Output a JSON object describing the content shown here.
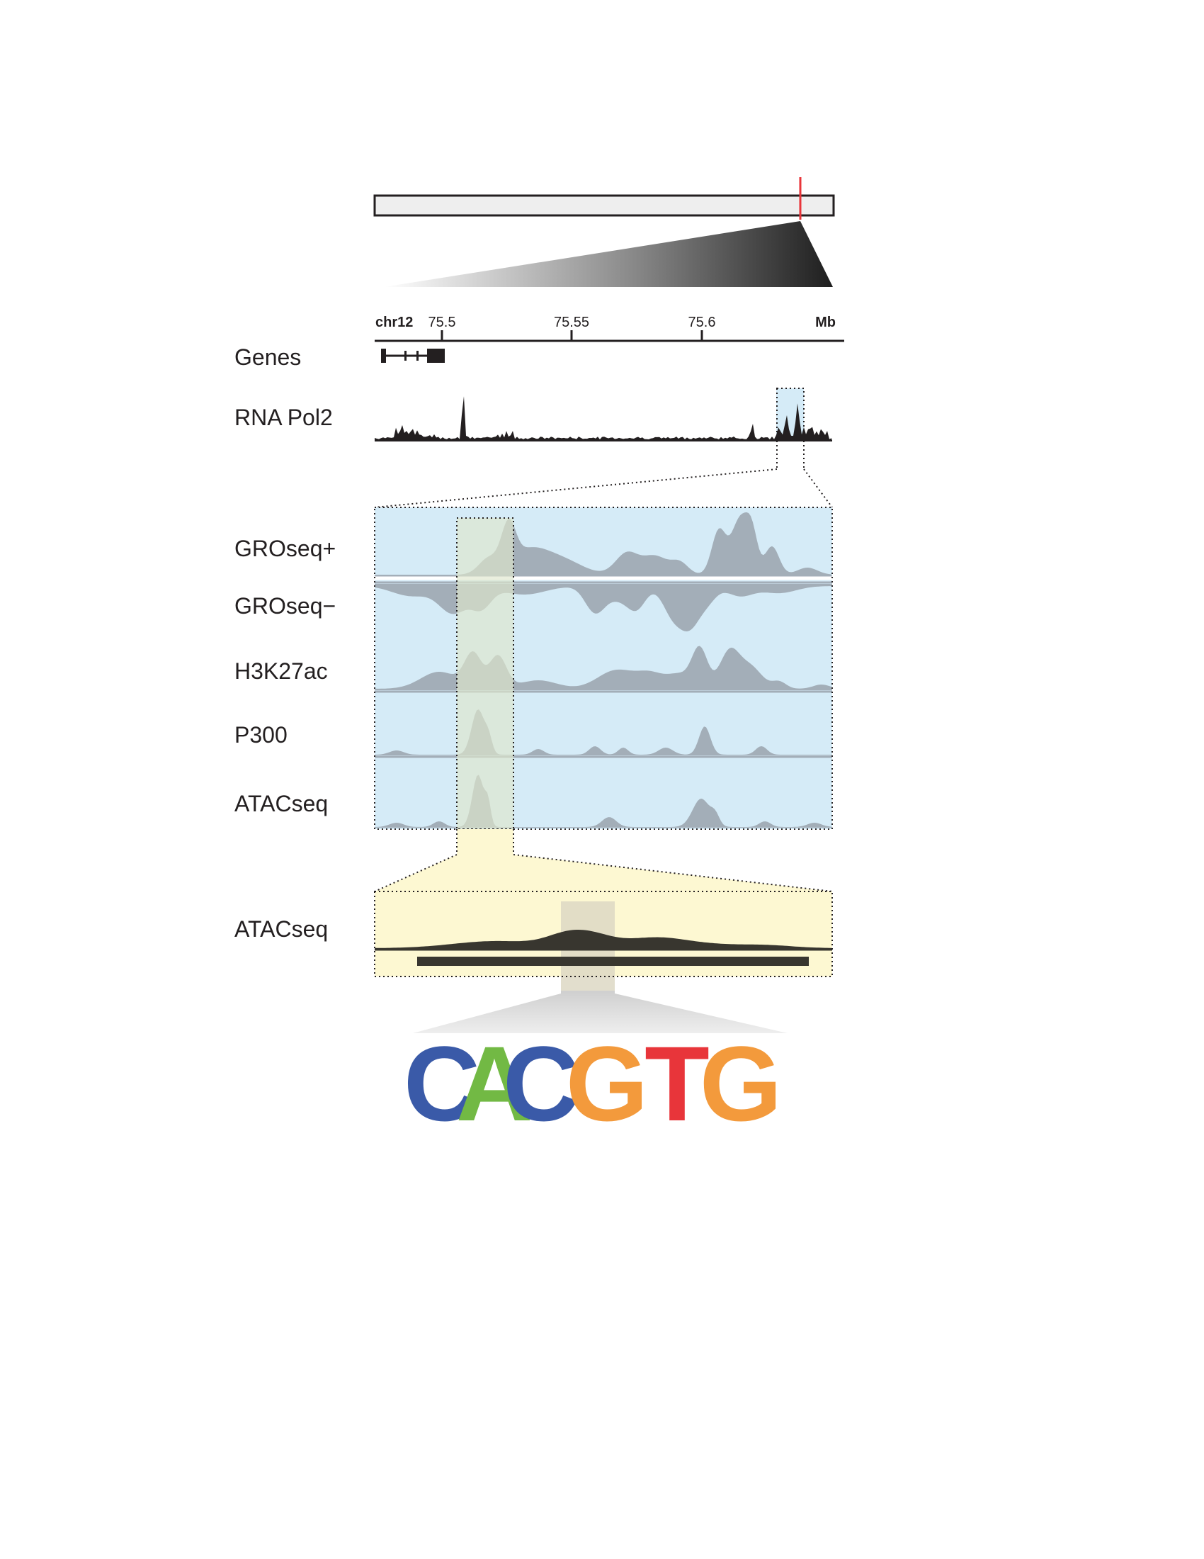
{
  "axis": {
    "chrom": "chr12",
    "ticks": [
      "75.5",
      "75.55",
      "75.6"
    ],
    "unit": "Mb"
  },
  "tracks": {
    "genes": "Genes",
    "rna_pol2": "RNA Pol2",
    "groseq_plus": "GROseq+",
    "groseq_minus": "GROseq−",
    "h3k27ac": "H3K27ac",
    "p300": "P300",
    "atacseq": "ATACseq",
    "atacseq_zoom": "ATACseq"
  },
  "motif": {
    "letters": [
      {
        "char": "C",
        "color": "#3a5aa8"
      },
      {
        "char": "A",
        "color": "#72b944"
      },
      {
        "char": "C",
        "color": "#3a5aa8"
      },
      {
        "char": "G",
        "color": "#f39a3c"
      },
      {
        "char": "T",
        "color": "#e8353a"
      },
      {
        "char": "G",
        "color": "#f39a3c"
      }
    ]
  },
  "colors": {
    "zoom_panel": "#d5ebf7",
    "zoom2_panel": "#fdf8d2",
    "highlight": "#dfe6cd",
    "signal_grey": "#a3aeb8",
    "signal_dark": "#38362f",
    "chrom_marker": "#e8353a"
  }
}
